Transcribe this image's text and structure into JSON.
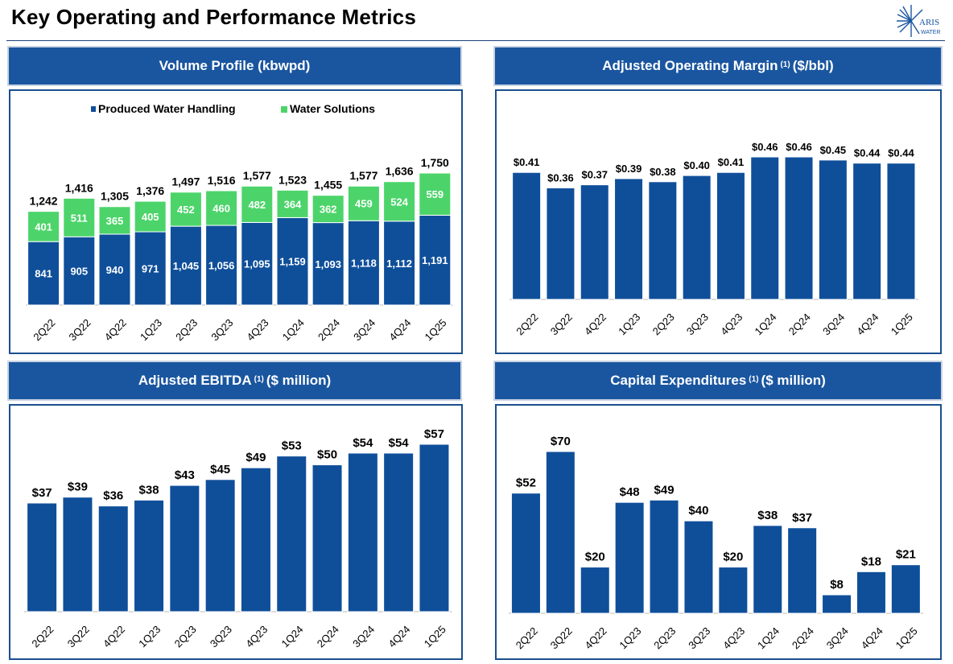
{
  "page": {
    "title": "Key Operating and Performance Metrics",
    "logo_text": "ARIS WATER"
  },
  "colors": {
    "header_bg": "#1a56a0",
    "bar_blue": "#0f4f9a",
    "bar_green": "#4cd46a"
  },
  "panels": {
    "volume": {
      "title": "Volume Profile (kbwpd)"
    },
    "margin": {
      "title_pre": "Adjusted Operating Margin",
      "sup": "(1)",
      "title_post": "($/bbl)"
    },
    "ebitda": {
      "title_pre": "Adjusted EBITDA",
      "sup": "(1)",
      "title_post": "($ million)"
    },
    "capex": {
      "title_pre": "Capital Expenditures",
      "sup": "(1)",
      "title_post": "($ million)"
    }
  },
  "chart_data": [
    {
      "type": "bar",
      "stacked": true,
      "title": "Volume Profile (kbwpd)",
      "categories": [
        "2Q22",
        "3Q22",
        "4Q22",
        "1Q23",
        "2Q23",
        "3Q23",
        "4Q23",
        "1Q24",
        "2Q24",
        "3Q24",
        "4Q24",
        "1Q25"
      ],
      "series": [
        {
          "name": "Produced Water Handling",
          "color": "#0f4f9a",
          "values": [
            841,
            905,
            940,
            971,
            1045,
            1056,
            1095,
            1159,
            1093,
            1118,
            1112,
            1191
          ],
          "labels": [
            "841",
            "905",
            "940",
            "971",
            "1,045",
            "1,056",
            "1,095",
            "1,159",
            "1,093",
            "1,118",
            "1,112",
            "1,191"
          ]
        },
        {
          "name": "Water Solutions",
          "color": "#4cd46a",
          "values": [
            401,
            511,
            365,
            405,
            452,
            460,
            482,
            364,
            362,
            459,
            524,
            559
          ],
          "labels": [
            "401",
            "511",
            "365",
            "405",
            "452",
            "460",
            "482",
            "364",
            "362",
            "459",
            "524",
            "559"
          ]
        }
      ],
      "totals": [
        "1,242",
        "1,416",
        "1,305",
        "1,376",
        "1,497",
        "1,516",
        "1,577",
        "1,523",
        "1,455",
        "1,577",
        "1,636",
        "1,750"
      ],
      "legend_position": "top"
    },
    {
      "type": "bar",
      "title": "Adjusted Operating Margin (1) ($/bbl)",
      "categories": [
        "2Q22",
        "3Q22",
        "4Q22",
        "1Q23",
        "2Q23",
        "3Q23",
        "4Q23",
        "1Q24",
        "2Q24",
        "3Q24",
        "4Q24",
        "1Q25"
      ],
      "values": [
        0.41,
        0.36,
        0.37,
        0.39,
        0.38,
        0.4,
        0.41,
        0.46,
        0.46,
        0.45,
        0.44,
        0.44
      ],
      "labels": [
        "$0.41",
        "$0.36",
        "$0.37",
        "$0.39",
        "$0.38",
        "$0.40",
        "$0.41",
        "$0.46",
        "$0.46",
        "$0.45",
        "$0.44",
        "$0.44"
      ]
    },
    {
      "type": "bar",
      "title": "Adjusted EBITDA (1) ($ million)",
      "categories": [
        "2Q22",
        "3Q22",
        "4Q22",
        "1Q23",
        "2Q23",
        "3Q23",
        "4Q23",
        "1Q24",
        "2Q24",
        "3Q24",
        "4Q24",
        "1Q25"
      ],
      "values": [
        37,
        39,
        36,
        38,
        43,
        45,
        49,
        53,
        50,
        54,
        54,
        57
      ],
      "labels": [
        "$37",
        "$39",
        "$36",
        "$38",
        "$43",
        "$45",
        "$49",
        "$53",
        "$50",
        "$54",
        "$54",
        "$57"
      ]
    },
    {
      "type": "bar",
      "title": "Capital Expenditures (1) ($ million)",
      "categories": [
        "2Q22",
        "3Q22",
        "4Q22",
        "1Q23",
        "2Q23",
        "3Q23",
        "4Q23",
        "1Q24",
        "2Q24",
        "3Q24",
        "4Q24",
        "1Q25"
      ],
      "values": [
        52,
        70,
        20,
        48,
        49,
        40,
        20,
        38,
        37,
        8,
        18,
        21
      ],
      "labels": [
        "$52",
        "$70",
        "$20",
        "$48",
        "$49",
        "$40",
        "$20",
        "$38",
        "$37",
        "$8",
        "$18",
        "$21"
      ]
    }
  ]
}
